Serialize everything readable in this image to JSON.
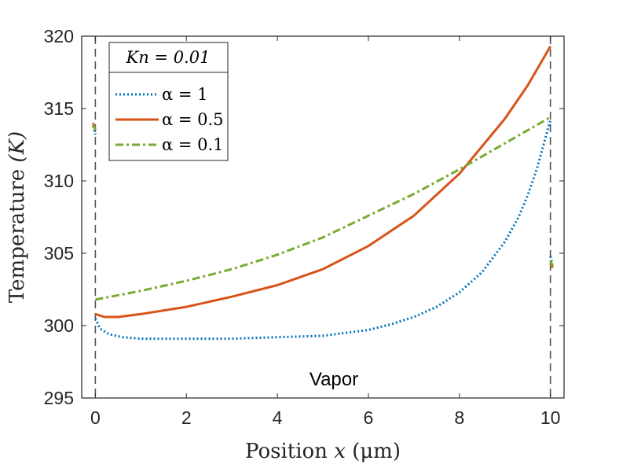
{
  "chart_data": {
    "type": "line",
    "title": "",
    "xlabel_main": "Position ",
    "xlabel_var": "x",
    "xlabel_unit": " (μm)",
    "ylabel_main": "Temperature ",
    "ylabel_unit": "(K)",
    "xlim": [
      -0.3,
      10.3
    ],
    "ylim": [
      295,
      320
    ],
    "xticks": [
      0,
      2,
      4,
      6,
      8,
      10
    ],
    "yticks": [
      295,
      300,
      305,
      310,
      315,
      320
    ],
    "grid": false,
    "legend_title": "Kn = 0.01",
    "legend_position": "top-left",
    "annotation": "Vapor",
    "vlines": [
      0,
      10
    ],
    "series": [
      {
        "name": "α = 1",
        "color": "#0072BD",
        "style": "dotted",
        "x": [
          0,
          0.1,
          0.3,
          0.6,
          1,
          1.5,
          2,
          3,
          4,
          5,
          5.5,
          6,
          6.5,
          7,
          7.5,
          8,
          8.5,
          9,
          9.3,
          9.5,
          9.7,
          9.85,
          10
        ],
        "y": [
          300.5,
          299.8,
          299.4,
          299.2,
          299.1,
          299.1,
          299.1,
          299.1,
          299.2,
          299.3,
          299.5,
          299.7,
          300.1,
          300.6,
          301.3,
          302.3,
          303.7,
          305.8,
          307.5,
          309.0,
          310.8,
          312.5,
          314.2
        ],
        "outside_left": {
          "x": [
            -0.05,
            0.0
          ],
          "y": [
            313.8,
            313.2
          ]
        },
        "outside_right": {
          "x": [
            10.0,
            10.05
          ],
          "y": [
            304.8,
            304.1
          ]
        }
      },
      {
        "name": "α = 0.5",
        "color": "#D95319",
        "style": "solid",
        "x": [
          0,
          0.2,
          0.5,
          1,
          2,
          3,
          4,
          5,
          6,
          7,
          8,
          9,
          9.5,
          10
        ],
        "y": [
          300.8,
          300.6,
          300.6,
          300.8,
          301.3,
          302.0,
          302.8,
          303.9,
          305.5,
          307.6,
          310.5,
          314.3,
          316.6,
          319.3
        ],
        "outside_left": {
          "x": [
            -0.05,
            0.0
          ],
          "y": [
            314.0,
            313.6
          ]
        },
        "outside_right": {
          "x": [
            10.0,
            10.05
          ],
          "y": [
            304.3,
            304.0
          ]
        }
      },
      {
        "name": "α = 0.1",
        "color": "#77AC30",
        "style": "dashdot",
        "x": [
          0,
          1,
          2,
          3,
          4,
          5,
          6,
          7,
          8,
          9,
          10
        ],
        "y": [
          301.8,
          302.4,
          303.1,
          303.9,
          304.9,
          306.1,
          307.6,
          309.1,
          310.8,
          312.6,
          314.4
        ],
        "outside_left": {
          "x": [
            -0.05,
            0.0
          ],
          "y": [
            313.9,
            313.5
          ]
        },
        "outside_right": {
          "x": [
            10.0,
            10.05
          ],
          "y": [
            304.5,
            304.1
          ]
        }
      }
    ]
  }
}
